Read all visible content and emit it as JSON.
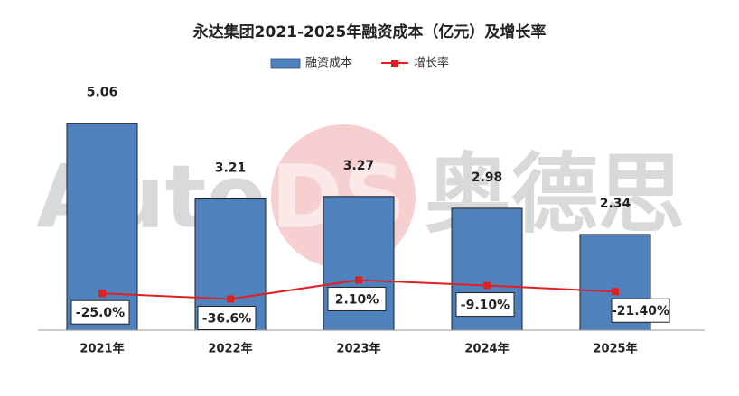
{
  "chart_data": {
    "type": "bar_line",
    "title": "永达集团2021-2025年融资成本（亿元）及增长率",
    "watermark": [
      "Auto",
      "DS",
      "奥德思"
    ],
    "categories": [
      "2021年",
      "2022年",
      "2023年",
      "2024年",
      "2025年"
    ],
    "series": [
      {
        "name": "融资成本",
        "type": "bar",
        "color": "#4f81bd",
        "values": [
          5.06,
          3.21,
          3.27,
          2.98,
          2.34
        ]
      },
      {
        "name": "增长率",
        "type": "line",
        "axis": "y2",
        "color": "#e02020",
        "values": [
          -25.0,
          -36.6,
          2.1,
          -9.1,
          -21.4
        ],
        "value_labels": [
          "-25.0%",
          "-36.6%",
          "2.10%",
          "-9.10%",
          "-21.40%"
        ]
      }
    ],
    "ylim": [
      0,
      6
    ],
    "y2lim": [
      -100,
      400
    ],
    "legend": "top"
  }
}
